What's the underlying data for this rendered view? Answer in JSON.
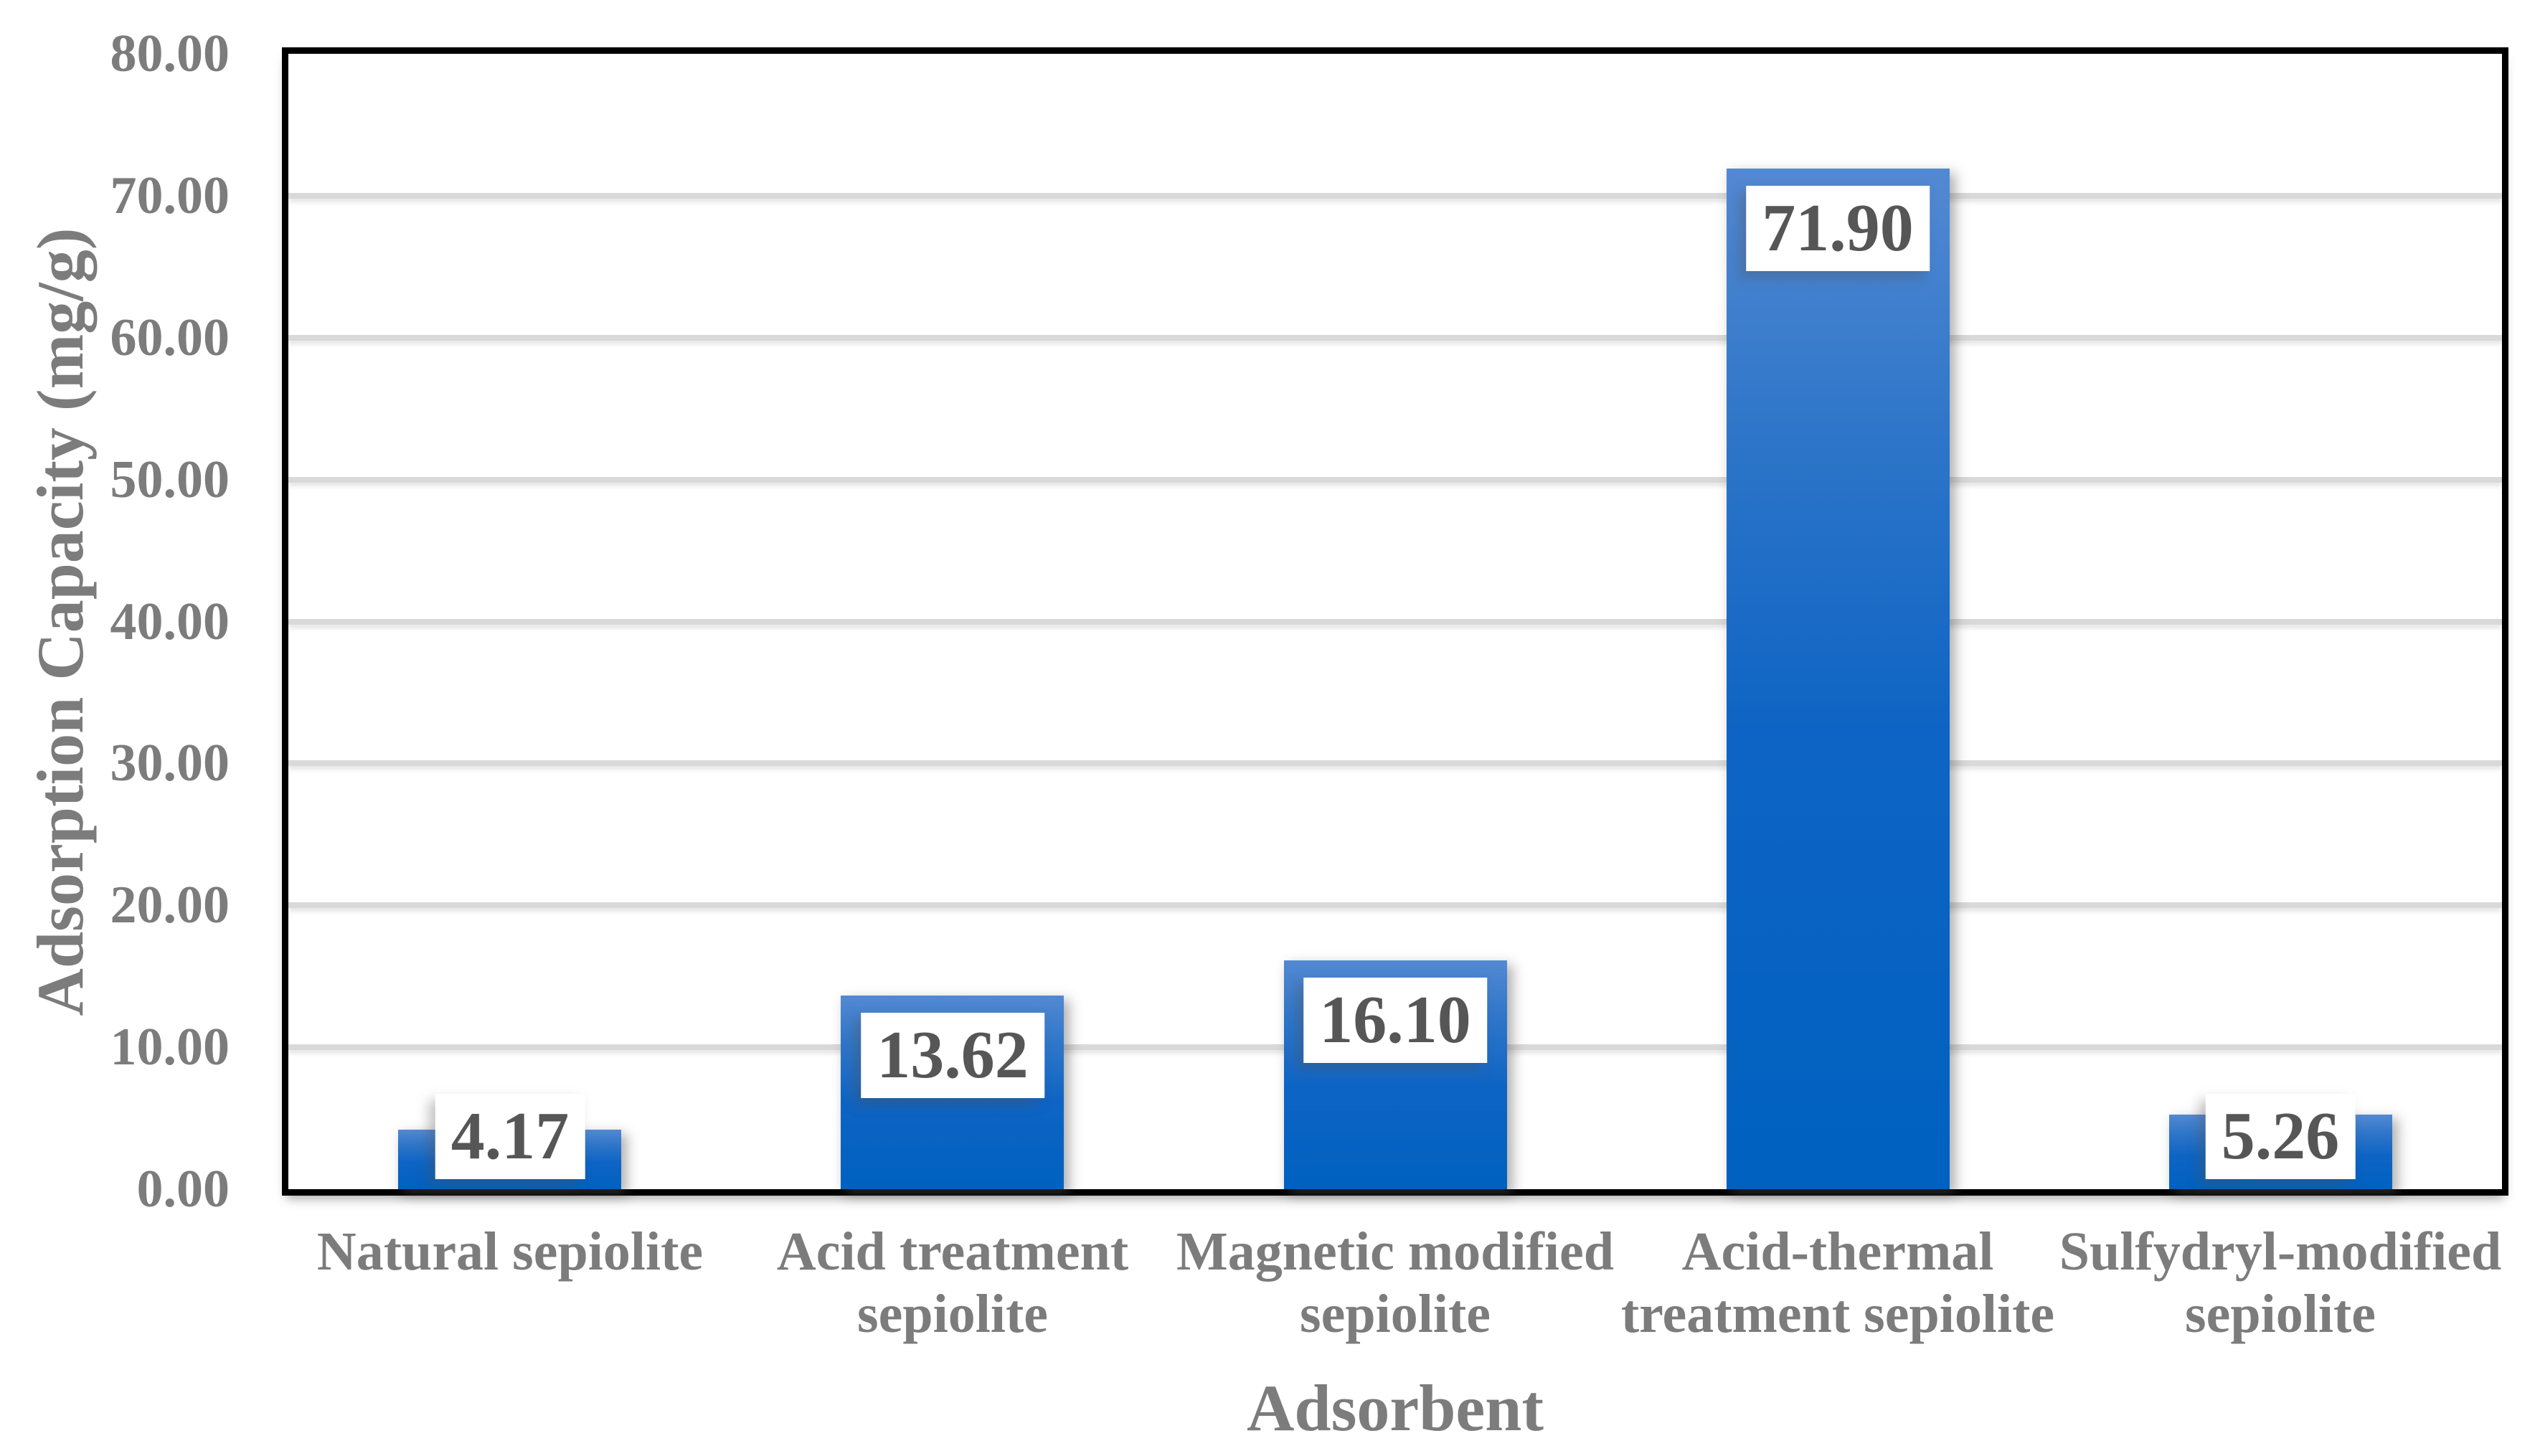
{
  "chart_data": {
    "type": "bar",
    "title": "",
    "categories": [
      "Natural sepiolite",
      "Acid treatment sepiolite",
      "Magnetic modified sepiolite",
      "Acid-thermal treatment sepiolite",
      "Sulfydryl-modified sepiolite"
    ],
    "category_lines": [
      [
        "Natural sepiolite"
      ],
      [
        "Acid treatment",
        "sepiolite"
      ],
      [
        "Magnetic modified",
        "sepiolite"
      ],
      [
        "Acid-thermal",
        "treatment sepiolite"
      ],
      [
        "Sulfydryl-modified",
        "sepiolite"
      ]
    ],
    "values": [
      4.17,
      13.62,
      16.1,
      71.9,
      5.26
    ],
    "value_labels": [
      "4.17",
      "13.62",
      "16.10",
      "71.90",
      "5.26"
    ],
    "xlabel": "Adsorbent",
    "ylabel": "Adsorption Capacity (mg/g)",
    "ylim": [
      0,
      80
    ],
    "ytick_step": 10,
    "ytick_labels": [
      "0.00",
      "10.00",
      "20.00",
      "30.00",
      "40.00",
      "50.00",
      "60.00",
      "70.00",
      "80.00"
    ],
    "grid": "horizontal",
    "legend": "none",
    "colors": {
      "bar_gradient_top": "#5389D2",
      "bar_gradient_upper_mid": "#2F76C9",
      "bar_gradient_lower_mid": "#0E64C4",
      "bar_gradient_bottom": "#0061C0",
      "gridline": "#D9D9D9",
      "plot_border": "#000000",
      "axis_text": "#7C7C7C",
      "data_label_text": "#565656",
      "background": "#FFFFFF"
    }
  }
}
